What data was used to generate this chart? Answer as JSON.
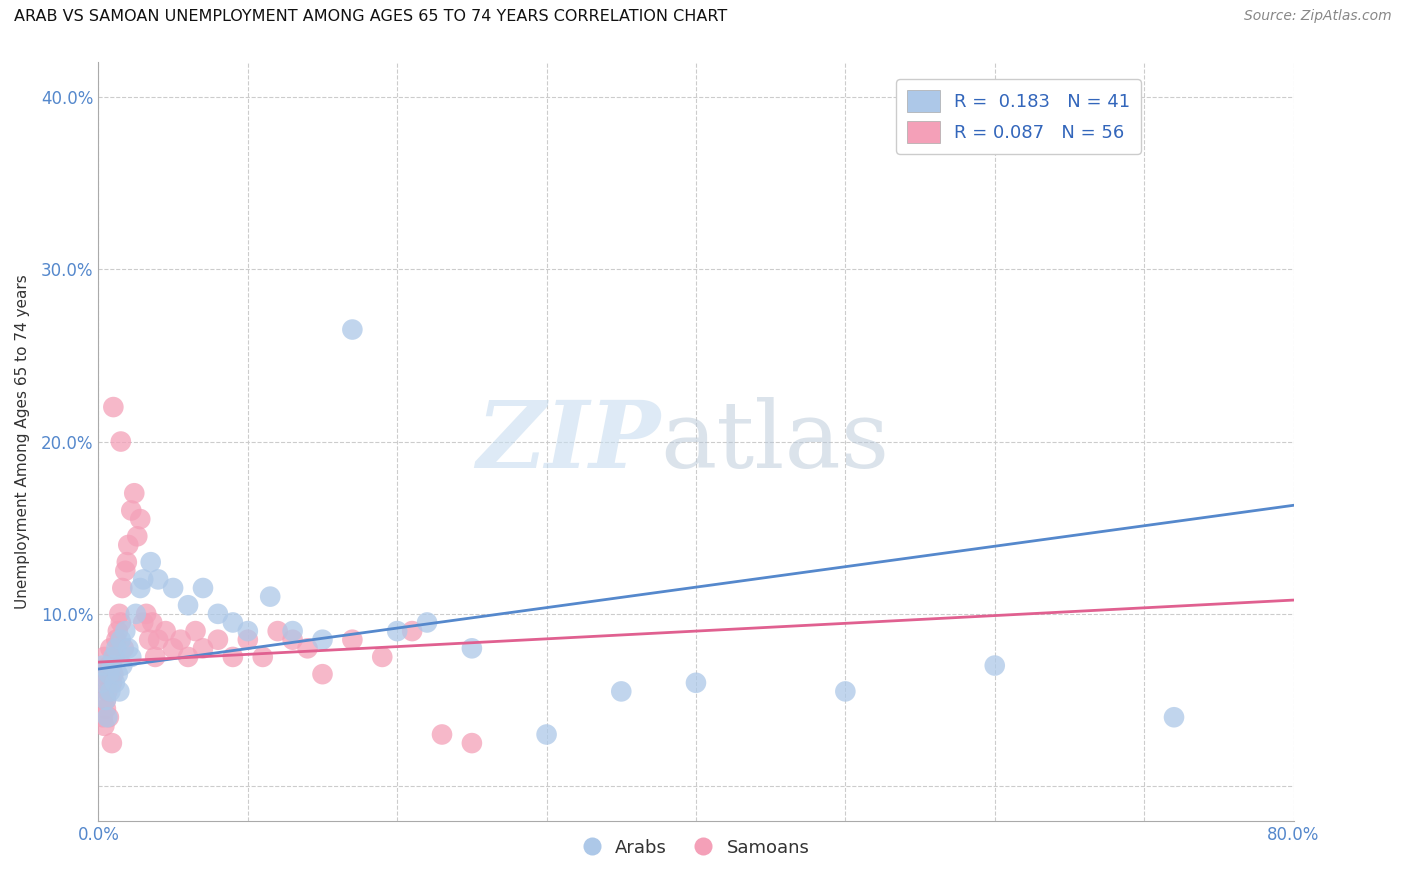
{
  "title": "ARAB VS SAMOAN UNEMPLOYMENT AMONG AGES 65 TO 74 YEARS CORRELATION CHART",
  "source": "Source: ZipAtlas.com",
  "ylabel": "Unemployment Among Ages 65 to 74 years",
  "xlim": [
    0.0,
    0.8
  ],
  "ylim": [
    -0.02,
    0.42
  ],
  "arab_R": 0.183,
  "arab_N": 41,
  "samoan_R": 0.087,
  "samoan_N": 56,
  "arab_color": "#adc8e8",
  "samoan_color": "#f4a0b8",
  "arab_line_color": "#5588cc",
  "samoan_line_color": "#e06090",
  "watermark_zip": "ZIP",
  "watermark_atlas": "atlas",
  "legend_label_arab": "Arabs",
  "legend_label_samoan": "Samoans",
  "arab_trend_start": 0.068,
  "arab_trend_end": 0.163,
  "samoan_trend_start": 0.072,
  "samoan_trend_end": 0.108,
  "arab_x": [
    0.002,
    0.003,
    0.005,
    0.006,
    0.007,
    0.008,
    0.009,
    0.01,
    0.011,
    0.012,
    0.013,
    0.014,
    0.015,
    0.016,
    0.018,
    0.02,
    0.022,
    0.025,
    0.028,
    0.03,
    0.035,
    0.04,
    0.05,
    0.06,
    0.07,
    0.08,
    0.09,
    0.1,
    0.115,
    0.13,
    0.15,
    0.17,
    0.2,
    0.22,
    0.25,
    0.3,
    0.35,
    0.4,
    0.5,
    0.6,
    0.72
  ],
  "arab_y": [
    0.06,
    0.07,
    0.05,
    0.04,
    0.065,
    0.055,
    0.07,
    0.075,
    0.06,
    0.08,
    0.065,
    0.055,
    0.085,
    0.07,
    0.09,
    0.08,
    0.075,
    0.1,
    0.115,
    0.12,
    0.13,
    0.12,
    0.115,
    0.105,
    0.115,
    0.1,
    0.095,
    0.09,
    0.11,
    0.09,
    0.085,
    0.265,
    0.09,
    0.095,
    0.08,
    0.03,
    0.055,
    0.06,
    0.055,
    0.07,
    0.04
  ],
  "samoan_x": [
    0.002,
    0.004,
    0.005,
    0.006,
    0.007,
    0.008,
    0.009,
    0.01,
    0.011,
    0.012,
    0.013,
    0.014,
    0.015,
    0.016,
    0.017,
    0.018,
    0.019,
    0.02,
    0.022,
    0.024,
    0.026,
    0.028,
    0.03,
    0.032,
    0.034,
    0.036,
    0.038,
    0.04,
    0.045,
    0.05,
    0.055,
    0.06,
    0.065,
    0.07,
    0.08,
    0.09,
    0.1,
    0.11,
    0.12,
    0.13,
    0.14,
    0.15,
    0.17,
    0.19,
    0.21,
    0.23,
    0.25,
    0.003,
    0.004,
    0.005,
    0.006,
    0.007,
    0.008,
    0.009,
    0.01,
    0.015
  ],
  "samoan_y": [
    0.065,
    0.075,
    0.05,
    0.06,
    0.07,
    0.08,
    0.06,
    0.065,
    0.075,
    0.085,
    0.09,
    0.1,
    0.095,
    0.115,
    0.08,
    0.125,
    0.13,
    0.14,
    0.16,
    0.17,
    0.145,
    0.155,
    0.095,
    0.1,
    0.085,
    0.095,
    0.075,
    0.085,
    0.09,
    0.08,
    0.085,
    0.075,
    0.09,
    0.08,
    0.085,
    0.075,
    0.085,
    0.075,
    0.09,
    0.085,
    0.08,
    0.065,
    0.085,
    0.075,
    0.09,
    0.03,
    0.025,
    0.04,
    0.035,
    0.045,
    0.055,
    0.04,
    0.065,
    0.025,
    0.22,
    0.2
  ]
}
